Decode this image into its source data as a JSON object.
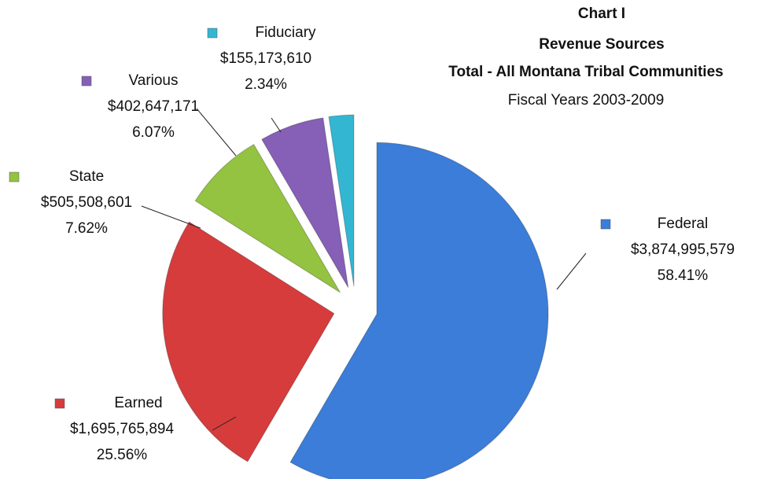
{
  "chart_data": {
    "type": "pie",
    "title": [
      "Chart I",
      "Revenue Sources",
      "Total - All Montana Tribal Communities"
    ],
    "subtitle": "Fiscal Years 2003-2009",
    "categories": [
      "Federal",
      "Earned",
      "State",
      "Various",
      "Fiduciary"
    ],
    "values": [
      3874995579,
      1695765894,
      505508601,
      402647171,
      155173610
    ],
    "value_labels": [
      "$3,874,995,579",
      "$1,695,765,894",
      "$505,508,601",
      "$402,647,171",
      "$155,173,610"
    ],
    "percents": [
      58.41,
      25.56,
      7.62,
      6.07,
      2.34
    ],
    "percent_labels": [
      "58.41%",
      "25.56%",
      "7.62%",
      "6.07%",
      "2.34%"
    ],
    "colors": [
      "#3b7dd8",
      "#d63c3c",
      "#93c340",
      "#8560b6",
      "#33b6d2"
    ]
  }
}
